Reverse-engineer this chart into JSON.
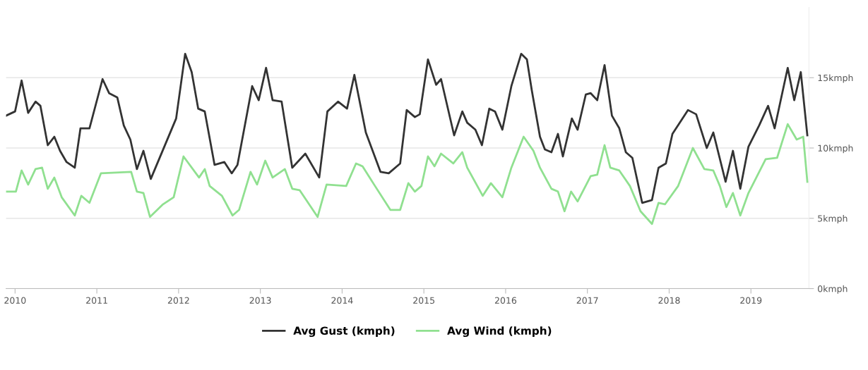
{
  "chart_data": {
    "type": "line",
    "xlim": [
      2009.89,
      2019.71
    ],
    "xticks": [
      2010,
      2011,
      2012,
      2013,
      2014,
      2015,
      2016,
      2017,
      2018,
      2019
    ],
    "ylim": [
      0,
      20
    ],
    "yticks": [
      {
        "value": 0,
        "label": "0kmph"
      },
      {
        "value": 5,
        "label": "5kmph"
      },
      {
        "value": 10,
        "label": "10kmph"
      },
      {
        "value": 15,
        "label": "15kmph"
      }
    ],
    "grid": "y",
    "legend": "bottom",
    "marker": "none",
    "line_style": "solid",
    "series": [
      {
        "name": "Avg Gust (kmph)",
        "color": "#333333",
        "x": [
          2009.89,
          2010.0,
          2010.08,
          2010.16,
          2010.25,
          2010.31,
          2010.4,
          2010.48,
          2010.55,
          2010.63,
          2010.73,
          2010.8,
          2010.91,
          2011.07,
          2011.15,
          2011.25,
          2011.33,
          2011.41,
          2011.49,
          2011.57,
          2011.66,
          2011.97,
          2012.08,
          2012.16,
          2012.24,
          2012.32,
          2012.44,
          2012.56,
          2012.65,
          2012.72,
          2012.9,
          2012.98,
          2013.07,
          2013.15,
          2013.26,
          2013.39,
          2013.55,
          2013.72,
          2013.82,
          2013.95,
          2014.06,
          2014.15,
          2014.29,
          2014.47,
          2014.57,
          2014.71,
          2014.79,
          2014.89,
          2014.95,
          2015.05,
          2015.15,
          2015.21,
          2015.37,
          2015.47,
          2015.53,
          2015.63,
          2015.71,
          2015.8,
          2015.87,
          2015.96,
          2016.07,
          2016.19,
          2016.26,
          2016.32,
          2016.42,
          2016.48,
          2016.56,
          2016.64,
          2016.7,
          2016.81,
          2016.88,
          2016.98,
          2017.04,
          2017.12,
          2017.21,
          2017.3,
          2017.39,
          2017.47,
          2017.55,
          2017.67,
          2017.79,
          2017.87,
          2017.96,
          2018.04,
          2018.23,
          2018.33,
          2018.46,
          2018.54,
          2018.69,
          2018.78,
          2018.87,
          2018.97,
          2019.1,
          2019.21,
          2019.29,
          2019.45,
          2019.53,
          2019.61,
          2019.69
        ],
        "values": [
          12.3,
          12.6,
          14.8,
          12.5,
          13.3,
          13.0,
          10.2,
          10.8,
          9.8,
          9.0,
          8.6,
          11.4,
          11.4,
          14.9,
          13.9,
          13.6,
          11.6,
          10.6,
          8.5,
          9.8,
          7.8,
          12.1,
          16.7,
          15.4,
          12.8,
          12.6,
          8.8,
          9.0,
          8.2,
          8.8,
          14.4,
          13.4,
          15.7,
          13.4,
          13.3,
          8.6,
          9.6,
          7.9,
          12.6,
          13.3,
          12.8,
          15.2,
          11.1,
          8.3,
          8.2,
          8.9,
          12.7,
          12.2,
          12.4,
          16.3,
          14.5,
          14.9,
          10.9,
          12.6,
          11.8,
          11.3,
          10.2,
          12.8,
          12.6,
          11.3,
          14.4,
          16.7,
          16.3,
          14.1,
          10.8,
          9.9,
          9.7,
          11.0,
          9.4,
          12.1,
          11.3,
          13.8,
          13.9,
          13.4,
          15.9,
          12.3,
          11.4,
          9.7,
          9.3,
          6.1,
          6.3,
          8.6,
          8.9,
          11.0,
          12.7,
          12.4,
          10.0,
          11.1,
          7.6,
          9.8,
          7.1,
          10.1,
          11.6,
          13.0,
          11.4,
          15.7,
          13.4,
          15.4,
          10.9
        ]
      },
      {
        "name": "Avg Wind (kmph)",
        "color": "#90e090",
        "x": [
          2009.89,
          2010.01,
          2010.08,
          2010.16,
          2010.25,
          2010.33,
          2010.4,
          2010.48,
          2010.57,
          2010.73,
          2010.81,
          2010.91,
          2011.05,
          2011.42,
          2011.49,
          2011.57,
          2011.65,
          2011.81,
          2011.94,
          2012.06,
          2012.25,
          2012.32,
          2012.38,
          2012.53,
          2012.66,
          2012.74,
          2012.88,
          2012.96,
          2013.06,
          2013.15,
          2013.3,
          2013.39,
          2013.48,
          2013.7,
          2013.81,
          2014.05,
          2014.17,
          2014.25,
          2014.38,
          2014.59,
          2014.71,
          2014.81,
          2014.89,
          2014.97,
          2015.05,
          2015.13,
          2015.21,
          2015.36,
          2015.47,
          2015.53,
          2015.72,
          2015.82,
          2015.96,
          2016.07,
          2016.22,
          2016.34,
          2016.42,
          2016.56,
          2016.64,
          2016.72,
          2016.8,
          2016.88,
          2017.04,
          2017.12,
          2017.21,
          2017.28,
          2017.39,
          2017.52,
          2017.65,
          2017.79,
          2017.87,
          2017.95,
          2018.11,
          2018.29,
          2018.43,
          2018.54,
          2018.62,
          2018.7,
          2018.78,
          2018.87,
          2018.97,
          2019.18,
          2019.32,
          2019.45,
          2019.56,
          2019.64,
          2019.69
        ],
        "values": [
          6.9,
          6.9,
          8.4,
          7.4,
          8.5,
          8.6,
          7.1,
          7.9,
          6.5,
          5.2,
          6.6,
          6.1,
          8.2,
          8.3,
          6.9,
          6.8,
          5.1,
          6.0,
          6.5,
          9.4,
          7.9,
          8.5,
          7.3,
          6.6,
          5.2,
          5.6,
          8.3,
          7.4,
          9.1,
          7.9,
          8.5,
          7.1,
          7.0,
          5.1,
          7.4,
          7.3,
          8.9,
          8.7,
          7.5,
          5.6,
          5.6,
          7.5,
          6.9,
          7.3,
          9.4,
          8.7,
          9.6,
          8.9,
          9.7,
          8.6,
          6.6,
          7.5,
          6.5,
          8.6,
          10.8,
          9.8,
          8.6,
          7.1,
          6.9,
          5.5,
          6.9,
          6.2,
          8.0,
          8.1,
          10.2,
          8.6,
          8.4,
          7.3,
          5.5,
          4.6,
          6.1,
          6.0,
          7.3,
          10.0,
          8.5,
          8.4,
          7.3,
          5.8,
          6.8,
          5.2,
          6.8,
          9.2,
          9.3,
          11.7,
          10.6,
          10.8,
          7.6
        ]
      }
    ]
  }
}
